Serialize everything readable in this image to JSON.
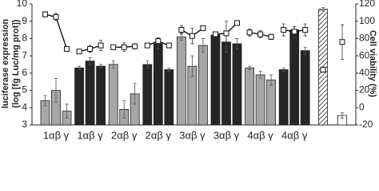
{
  "chart_data": {
    "type": "bar-line",
    "y_title": [
      "luciferase expression",
      "(log [fg Luc/mg prot])"
    ],
    "y2_title": "Cell viability (%)",
    "ylim": [
      3,
      10
    ],
    "yticks": [
      3,
      4,
      5,
      6,
      7,
      8,
      9,
      10
    ],
    "y2lim": [
      -20,
      120
    ],
    "y2ticks": [
      -20,
      0,
      20,
      40,
      60,
      80,
      100,
      120
    ],
    "groups": [
      {
        "label": "1αβ γ",
        "color": "#a6a6a6",
        "values": [
          4.4,
          5.0,
          3.8
        ],
        "errors": [
          0.3,
          0.7,
          0.4
        ],
        "viability": [
          108,
          105,
          68
        ],
        "viability_errors": [
          3,
          4,
          1
        ]
      },
      {
        "label": "1αβ γ",
        "color": "#262626",
        "values": [
          6.3,
          6.7,
          6.4
        ],
        "errors": [
          0.1,
          0.2,
          0.1
        ],
        "viability": [
          65,
          68,
          72
        ],
        "viability_errors": [
          2,
          4,
          6
        ]
      },
      {
        "label": "2αβ γ",
        "color": "#a6a6a6",
        "values": [
          6.5,
          3.9,
          4.8
        ],
        "errors": [
          0.2,
          0.5,
          0.6
        ],
        "viability": [
          70,
          70,
          71
        ],
        "viability_errors": [
          2,
          5,
          3
        ]
      },
      {
        "label": "2αβ γ",
        "color": "#262626",
        "values": [
          6.5,
          7.7,
          6.2
        ],
        "errors": [
          0.2,
          0.3,
          0.1
        ],
        "viability": [
          72,
          77,
          72
        ],
        "viability_errors": [
          1,
          4,
          1
        ]
      },
      {
        "label": "3αβ γ",
        "color": "#a6a6a6",
        "values": [
          8.1,
          6.4,
          7.6
        ],
        "errors": [
          0.2,
          0.6,
          0.4
        ],
        "viability": [
          90,
          83,
          92
        ],
        "viability_errors": [
          5,
          9,
          1
        ]
      },
      {
        "label": "3αβ γ",
        "color": "#262626",
        "values": [
          8.2,
          7.8,
          7.7
        ],
        "errors": [
          0.1,
          0.6,
          0.3
        ],
        "viability": [
          85,
          86,
          98
        ],
        "viability_errors": [
          2,
          14,
          1
        ]
      },
      {
        "label": "4αβ γ",
        "color": "#a6a6a6",
        "values": [
          6.3,
          5.9,
          5.6
        ],
        "errors": [
          0.1,
          0.2,
          0.3
        ],
        "viability": [
          87,
          85,
          82
        ],
        "viability_errors": [
          4,
          4,
          3
        ]
      },
      {
        "label": "4αβ γ",
        "color": "#262626",
        "values": [
          6.2,
          8.5,
          7.3
        ],
        "errors": [
          0.1,
          0.2,
          0.2
        ],
        "viability": [
          90,
          88,
          90
        ],
        "viability_errors": [
          7,
          6,
          7
        ]
      },
      {
        "label": null,
        "color": "#ffffff",
        "hatch": true,
        "values": [
          9.7
        ],
        "errors": [
          0.1
        ],
        "viability": [
          44
        ],
        "viability_errors": [
          3
        ]
      },
      {
        "label": null,
        "color": "#ffffff",
        "values": [
          3.55
        ],
        "errors": [
          0.15
        ],
        "viability": [
          76
        ],
        "viability_errors": [
          20
        ]
      }
    ]
  }
}
